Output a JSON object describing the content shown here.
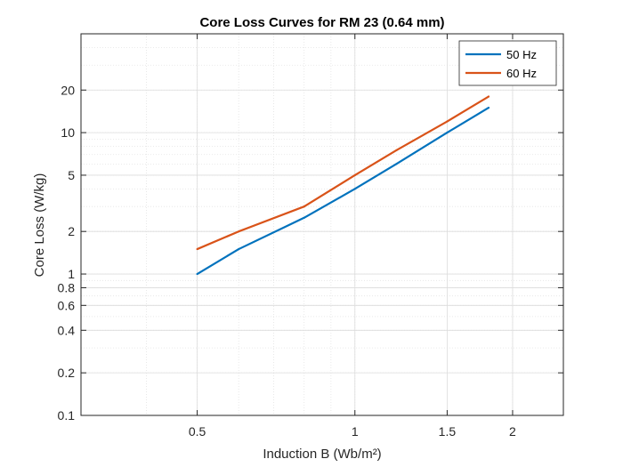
{
  "chart_data": {
    "type": "line",
    "title": "Core Loss Curves for RM 23 (0.64 mm)",
    "xlabel": "Induction B (Wb/m²)",
    "ylabel": "Core Loss (W/kg)",
    "x_scale": "log",
    "y_scale": "log",
    "xlim": [
      0.3,
      2.5
    ],
    "ylim": [
      0.1,
      50
    ],
    "x_ticks": [
      0.5,
      1,
      1.5,
      2
    ],
    "x_tick_labels": [
      "0.5",
      "1",
      "1.5",
      "2"
    ],
    "y_ticks": [
      0.1,
      0.2,
      0.4,
      0.6,
      0.8,
      1,
      2,
      5,
      10,
      20
    ],
    "y_tick_labels": [
      "0.1",
      "0.2",
      "0.4",
      "0.6",
      "0.8",
      "1",
      "2",
      "5",
      "10",
      "20"
    ],
    "grid": true,
    "legend_position": "top-right",
    "series": [
      {
        "name": "50 Hz",
        "color": "#0072BD",
        "x": [
          0.5,
          0.6,
          0.8,
          1.0,
          1.2,
          1.5,
          1.8
        ],
        "y": [
          1.0,
          1.5,
          2.5,
          4.0,
          6.0,
          10.0,
          15.0
        ]
      },
      {
        "name": "60 Hz",
        "color": "#D95319",
        "x": [
          0.5,
          0.6,
          0.8,
          1.0,
          1.2,
          1.5,
          1.8
        ],
        "y": [
          1.5,
          2.0,
          3.0,
          5.0,
          7.5,
          12.0,
          18.0
        ]
      }
    ]
  }
}
